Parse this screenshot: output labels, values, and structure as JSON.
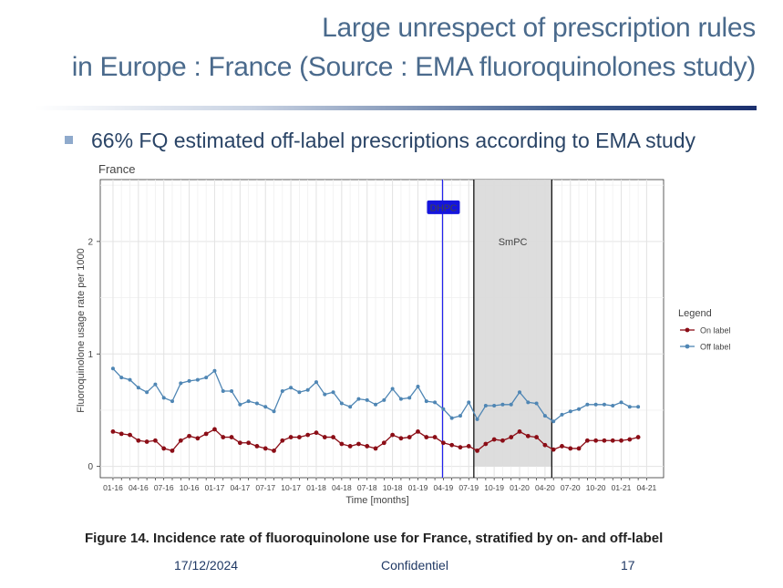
{
  "slide": {
    "title_line1": "Large unrespect of prescription rules",
    "title_line2": "in Europe : France (Source : EMA fluoroquinolones study)",
    "bullet": "66% FQ estimated off-label prescriptions according to EMA study",
    "caption": "Figure 14. Incidence rate of fluoroquinolone use for France, stratified by on- and off-label",
    "footer_date": "17/12/2024",
    "footer_conf": "Confidentiel",
    "footer_page": "17"
  },
  "chart_data": {
    "type": "line",
    "title": "France",
    "xlabel": "Time [months]",
    "ylabel": "Fluoroquinolone usage rate per 1000",
    "ylim": [
      -0.1,
      2.55
    ],
    "yticks": [
      0,
      1,
      2
    ],
    "x_count": 63,
    "x_range": [
      -1.5,
      65
    ],
    "xtick_positions": [
      0,
      3,
      6,
      9,
      12,
      15,
      18,
      21,
      24,
      27,
      30,
      33,
      36,
      39,
      42,
      45,
      48,
      51,
      54,
      57,
      60,
      63
    ],
    "xtick_labels": [
      "01-16",
      "04-16",
      "07-16",
      "10-16",
      "01-17",
      "04-17",
      "07-17",
      "10-17",
      "01-18",
      "04-18",
      "07-18",
      "10-18",
      "01-19",
      "04-19",
      "07-19",
      "10-19",
      "01-20",
      "04-20",
      "07-20",
      "10-20",
      "01-21",
      "04-21"
    ],
    "legend_title": "Legend",
    "legend_position": "right",
    "colors": {
      "on_label": "#8b0d16",
      "off_label": "#4f86b4",
      "dhpc": "#2222ee",
      "smpc_band": "#d9d9d9"
    },
    "series": [
      {
        "name": "On label",
        "values": [
          0.31,
          0.29,
          0.28,
          0.23,
          0.22,
          0.23,
          0.16,
          0.14,
          0.23,
          0.27,
          0.25,
          0.29,
          0.33,
          0.26,
          0.26,
          0.21,
          0.21,
          0.18,
          0.16,
          0.14,
          0.23,
          0.26,
          0.26,
          0.28,
          0.3,
          0.26,
          0.26,
          0.2,
          0.18,
          0.2,
          0.18,
          0.16,
          0.21,
          0.28,
          0.25,
          0.26,
          0.31,
          0.26,
          0.26,
          0.21,
          0.19,
          0.17,
          0.18,
          0.14,
          0.2,
          0.24,
          0.23,
          0.26,
          0.31,
          0.27,
          0.26,
          0.19,
          0.15,
          0.18,
          0.16,
          0.16,
          0.23,
          0.23,
          0.23,
          0.23,
          0.23,
          0.24,
          0.26
        ]
      },
      {
        "name": "Off label",
        "values": [
          0.87,
          0.79,
          0.77,
          0.7,
          0.66,
          0.73,
          0.61,
          0.58,
          0.74,
          0.76,
          0.77,
          0.79,
          0.85,
          0.67,
          0.67,
          0.55,
          0.58,
          0.56,
          0.53,
          0.49,
          0.67,
          0.7,
          0.66,
          0.68,
          0.75,
          0.64,
          0.66,
          0.56,
          0.53,
          0.6,
          0.59,
          0.55,
          0.59,
          0.69,
          0.6,
          0.61,
          0.71,
          0.58,
          0.57,
          0.51,
          0.43,
          0.45,
          0.57,
          0.42,
          0.54,
          0.54,
          0.55,
          0.55,
          0.66,
          0.57,
          0.56,
          0.45,
          0.4,
          0.46,
          0.49,
          0.51,
          0.55,
          0.55,
          0.55,
          0.54,
          0.57,
          0.53,
          0.53
        ]
      }
    ],
    "annotations": [
      {
        "label": "DHPC",
        "x": 38.9,
        "kind": "vertical-line"
      },
      {
        "label": "SmPC",
        "x_start": 42.6,
        "x_end": 51.8,
        "y_top": 2.55,
        "kind": "shaded-band"
      }
    ]
  }
}
